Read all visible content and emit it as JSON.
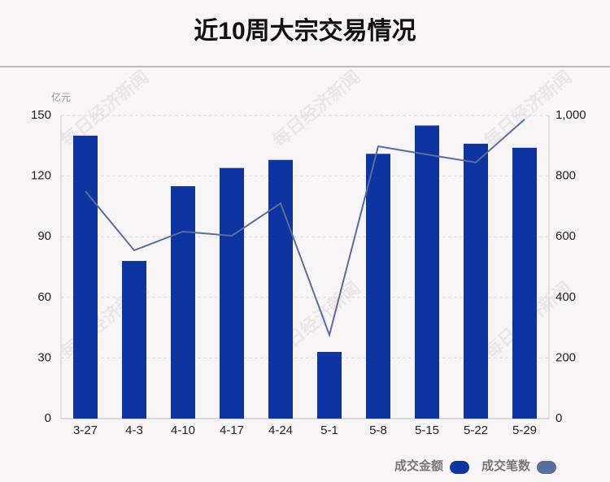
{
  "chart_data": {
    "type": "bar-line",
    "title": "近10周大宗交易情况",
    "y_unit": "亿元",
    "watermark": "每日经济新闻",
    "categories": [
      "3-27",
      "4-3",
      "4-10",
      "4-17",
      "4-24",
      "5-1",
      "5-8",
      "5-15",
      "5-22",
      "5-29"
    ],
    "series": [
      {
        "name": "成交金额",
        "type": "bar",
        "color": "#0d34a0",
        "values": [
          140,
          78,
          115,
          124,
          128,
          33,
          131,
          145,
          136,
          134
        ]
      },
      {
        "name": "成交笔数",
        "type": "line",
        "axis": "y2",
        "color": "#5a6e9c",
        "values": [
          750,
          555,
          617,
          603,
          710,
          276,
          898,
          871,
          845,
          987
        ]
      }
    ],
    "ylim": [
      0,
      150
    ],
    "yticks": [
      0,
      30,
      60,
      90,
      120,
      150
    ],
    "y2lim": [
      0,
      1000
    ],
    "y2ticks": [
      0,
      200,
      400,
      600,
      800,
      {
        "value": 1000,
        "label": "1,000"
      }
    ],
    "grid": true
  }
}
